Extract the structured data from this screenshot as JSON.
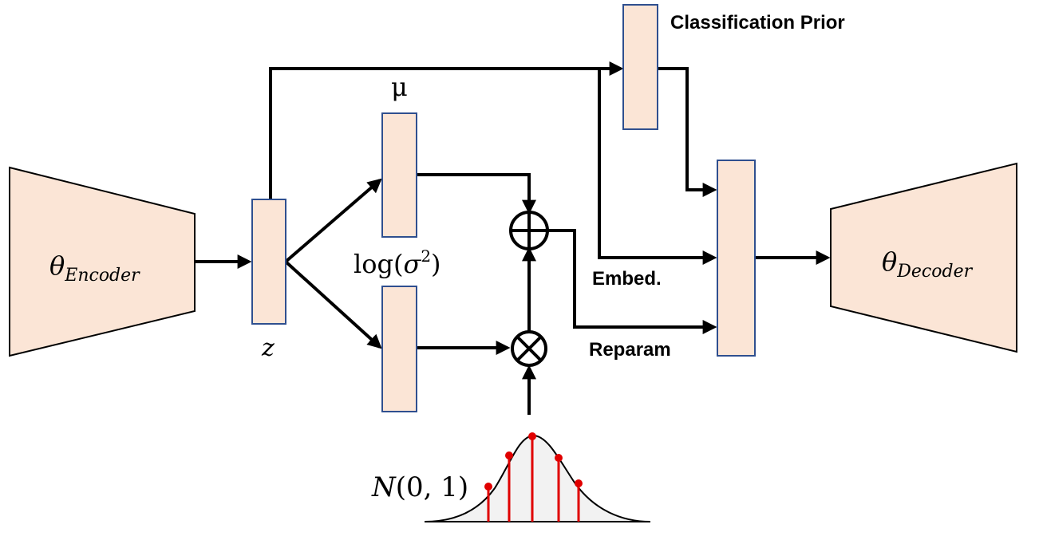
{
  "labels": {
    "encoder_symbol": "θ",
    "encoder_sub": "Encoder",
    "decoder_symbol": "θ",
    "decoder_sub": "Decoder",
    "z": "z",
    "mu": "μ",
    "logvar_prefix": "log(",
    "logvar_sigma": "σ",
    "logvar_exp": "2",
    "logvar_suffix": ")",
    "classification_prior": "Classification Prior",
    "embed": "Embed.",
    "reparam": "Reparam",
    "normal_N": "N",
    "normal_args": "(0, 1)"
  },
  "colors": {
    "box_fill": "#fbe5d6",
    "box_stroke": "#2f4f8f",
    "sample_stem": "#e00000"
  },
  "icons": {
    "add_op": "circle-plus",
    "mul_op": "circle-times"
  }
}
